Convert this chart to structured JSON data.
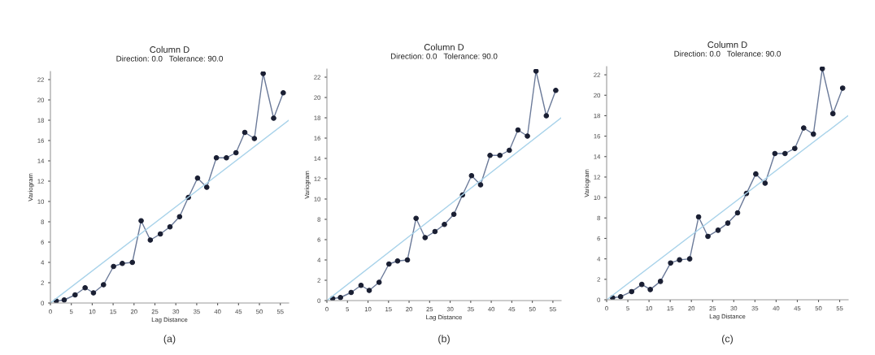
{
  "chart_data": [
    {
      "type": "line",
      "title": "Column D",
      "subtitle": "Direction: 0.0   Tolerance: 90.0",
      "xlabel": "Lag Distance",
      "ylabel": "Variogram",
      "annotations": [
        "(a)"
      ],
      "xlim": [
        0,
        57
      ],
      "ylim": [
        0,
        22.8
      ],
      "xticks": [
        0,
        5,
        10,
        15,
        20,
        25,
        30,
        35,
        40,
        45,
        50,
        55
      ],
      "yticks": [
        0,
        2,
        4,
        6,
        8,
        10,
        12,
        14,
        16,
        18,
        20,
        22
      ],
      "grid": false,
      "series": [
        {
          "color": "#6b7a99",
          "marker": "circle",
          "x": [
            1.4,
            3.3,
            5.9,
            8.3,
            10.3,
            12.7,
            15.1,
            17.2,
            19.6,
            21.7,
            23.9,
            26.3,
            28.6,
            30.9,
            33.0,
            35.2,
            37.4,
            39.7,
            42.1,
            44.4,
            46.5,
            48.8,
            50.9,
            53.4,
            55.7
          ],
          "values": [
            0.2,
            0.3,
            0.8,
            1.5,
            1.0,
            1.8,
            3.6,
            3.9,
            4.0,
            8.1,
            6.2,
            6.8,
            7.5,
            8.5,
            10.4,
            12.3,
            11.4,
            14.3,
            14.3,
            14.8,
            16.8,
            16.2,
            22.6,
            18.2,
            20.7
          ]
        },
        {
          "color": "#a9d3ea",
          "marker": "none",
          "x": [
            0,
            57
          ],
          "values": [
            0,
            18
          ]
        }
      ]
    },
    {
      "type": "line",
      "title": "Column D",
      "subtitle": "Direction: 0.0   Tolerance: 90.0",
      "xlabel": "Lag Distance",
      "ylabel": "Variogram",
      "annotations": [
        "(b)"
      ],
      "xlim": [
        0,
        57
      ],
      "ylim": [
        0,
        22.8
      ],
      "xticks": [
        0,
        5,
        10,
        15,
        20,
        25,
        30,
        35,
        40,
        45,
        50,
        55
      ],
      "yticks": [
        0,
        2,
        4,
        6,
        8,
        10,
        12,
        14,
        16,
        18,
        20,
        22
      ],
      "grid": false,
      "series": [
        {
          "color": "#6b7a99",
          "marker": "circle",
          "x": [
            1.4,
            3.3,
            5.9,
            8.3,
            10.3,
            12.7,
            15.1,
            17.2,
            19.6,
            21.7,
            23.9,
            26.3,
            28.6,
            30.9,
            33.0,
            35.2,
            37.4,
            39.7,
            42.1,
            44.4,
            46.5,
            48.8,
            50.9,
            53.4,
            55.7
          ],
          "values": [
            0.2,
            0.3,
            0.8,
            1.5,
            1.0,
            1.8,
            3.6,
            3.9,
            4.0,
            8.1,
            6.2,
            6.8,
            7.5,
            8.5,
            10.4,
            12.3,
            11.4,
            14.3,
            14.3,
            14.8,
            16.8,
            16.2,
            22.6,
            18.2,
            20.7
          ]
        },
        {
          "color": "#a9d3ea",
          "marker": "none",
          "x": [
            0,
            57
          ],
          "values": [
            0,
            18
          ]
        }
      ]
    },
    {
      "type": "line",
      "title": "Column D",
      "subtitle": "Direction: 0.0   Tolerance: 90.0",
      "xlabel": "Lag Distance",
      "ylabel": "Variogram",
      "annotations": [
        "(c)"
      ],
      "xlim": [
        0,
        57
      ],
      "ylim": [
        0,
        22.8
      ],
      "xticks": [
        0,
        5,
        10,
        15,
        20,
        25,
        30,
        35,
        40,
        45,
        50,
        55
      ],
      "yticks": [
        0,
        2,
        4,
        6,
        8,
        10,
        12,
        14,
        16,
        18,
        20,
        22
      ],
      "grid": false,
      "series": [
        {
          "color": "#6b7a99",
          "marker": "circle",
          "x": [
            1.4,
            3.3,
            5.9,
            8.3,
            10.3,
            12.7,
            15.1,
            17.2,
            19.6,
            21.7,
            23.9,
            26.3,
            28.6,
            30.9,
            33.0,
            35.2,
            37.4,
            39.7,
            42.1,
            44.4,
            46.5,
            48.8,
            50.9,
            53.4,
            55.7
          ],
          "values": [
            0.2,
            0.3,
            0.8,
            1.5,
            1.0,
            1.8,
            3.6,
            3.9,
            4.0,
            8.1,
            6.2,
            6.8,
            7.5,
            8.5,
            10.4,
            12.3,
            11.4,
            14.3,
            14.3,
            14.8,
            16.8,
            16.2,
            22.6,
            18.2,
            20.7
          ]
        },
        {
          "color": "#a9d3ea",
          "marker": "none",
          "x": [
            0,
            57
          ],
          "values": [
            0,
            18
          ]
        }
      ]
    }
  ]
}
